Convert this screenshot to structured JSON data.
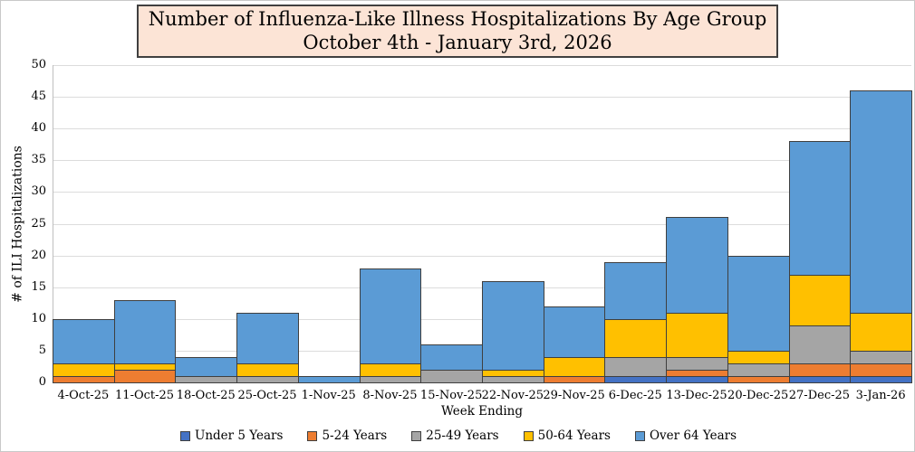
{
  "title": {
    "line1": "Number of Influenza-Like Illness Hospitalizations By Age Group",
    "line2": "October 4th - January 3rd, 2026"
  },
  "chart_data": {
    "type": "bar",
    "stacked": true,
    "title": "Number of Influenza-Like Illness Hospitalizations By Age Group, October 4th - January 3rd, 2026",
    "xlabel": "Week Ending",
    "ylabel": "# of ILI Hospitalizations",
    "ylim": [
      0,
      50
    ],
    "ytick_step": 5,
    "grid": true,
    "legend_position": "bottom",
    "categories": [
      "4-Oct-25",
      "11-Oct-25",
      "18-Oct-25",
      "25-Oct-25",
      "1-Nov-25",
      "8-Nov-25",
      "15-Nov-25",
      "22-Nov-25",
      "29-Nov-25",
      "6-Dec-25",
      "13-Dec-25",
      "20-Dec-25",
      "27-Dec-25",
      "3-Jan-26"
    ],
    "series": [
      {
        "name": "Under 5 Years",
        "color": "#4472C4",
        "values": [
          0,
          0,
          0,
          0,
          0,
          0,
          0,
          0,
          0,
          1,
          1,
          0,
          1,
          1
        ]
      },
      {
        "name": "5-24 Years",
        "color": "#ED7D31",
        "values": [
          1,
          2,
          0,
          0,
          0,
          0,
          0,
          0,
          1,
          0,
          1,
          1,
          2,
          2
        ]
      },
      {
        "name": "25-49 Years",
        "color": "#A5A5A5",
        "values": [
          0,
          0,
          1,
          1,
          0,
          1,
          2,
          1,
          0,
          3,
          2,
          2,
          6,
          2
        ]
      },
      {
        "name": "50-64 Years",
        "color": "#FFC000",
        "values": [
          2,
          1,
          0,
          2,
          0,
          2,
          0,
          1,
          3,
          6,
          7,
          2,
          8,
          6
        ]
      },
      {
        "name": "Over 64 Years",
        "color": "#5B9BD5",
        "values": [
          7,
          10,
          3,
          8,
          1,
          15,
          4,
          14,
          8,
          9,
          15,
          15,
          21,
          35
        ]
      }
    ],
    "totals": [
      10,
      13,
      4,
      11,
      1,
      18,
      6,
      16,
      12,
      19,
      26,
      20,
      38,
      46
    ]
  },
  "styles": {
    "segment_border": "#3f3f3f",
    "grid_color": "#DCDCDC",
    "axis_color": "#BFBFBF",
    "title_bg": "#FCE4D6",
    "title_border": "#404040",
    "text_color": "#000000"
  }
}
